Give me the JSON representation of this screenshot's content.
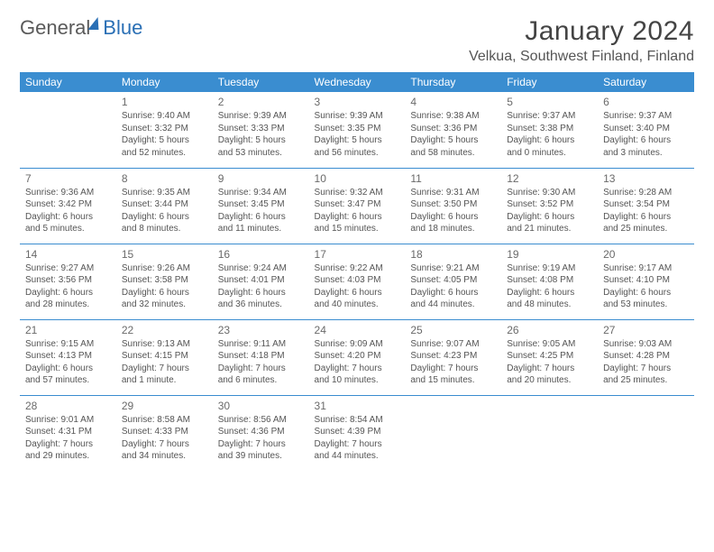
{
  "brand": {
    "part1": "General",
    "part2": "Blue"
  },
  "title": "January 2024",
  "location": "Velkua, Southwest Finland, Finland",
  "colors": {
    "header_bg": "#3a8dd0",
    "header_text": "#ffffff",
    "border": "#3a8dd0",
    "text": "#555555",
    "brand_accent": "#2a6fb5"
  },
  "week_headers": [
    "Sunday",
    "Monday",
    "Tuesday",
    "Wednesday",
    "Thursday",
    "Friday",
    "Saturday"
  ],
  "weeks": [
    [
      null,
      {
        "n": "1",
        "sr": "Sunrise: 9:40 AM",
        "ss": "Sunset: 3:32 PM",
        "d1": "Daylight: 5 hours",
        "d2": "and 52 minutes."
      },
      {
        "n": "2",
        "sr": "Sunrise: 9:39 AM",
        "ss": "Sunset: 3:33 PM",
        "d1": "Daylight: 5 hours",
        "d2": "and 53 minutes."
      },
      {
        "n": "3",
        "sr": "Sunrise: 9:39 AM",
        "ss": "Sunset: 3:35 PM",
        "d1": "Daylight: 5 hours",
        "d2": "and 56 minutes."
      },
      {
        "n": "4",
        "sr": "Sunrise: 9:38 AM",
        "ss": "Sunset: 3:36 PM",
        "d1": "Daylight: 5 hours",
        "d2": "and 58 minutes."
      },
      {
        "n": "5",
        "sr": "Sunrise: 9:37 AM",
        "ss": "Sunset: 3:38 PM",
        "d1": "Daylight: 6 hours",
        "d2": "and 0 minutes."
      },
      {
        "n": "6",
        "sr": "Sunrise: 9:37 AM",
        "ss": "Sunset: 3:40 PM",
        "d1": "Daylight: 6 hours",
        "d2": "and 3 minutes."
      }
    ],
    [
      {
        "n": "7",
        "sr": "Sunrise: 9:36 AM",
        "ss": "Sunset: 3:42 PM",
        "d1": "Daylight: 6 hours",
        "d2": "and 5 minutes."
      },
      {
        "n": "8",
        "sr": "Sunrise: 9:35 AM",
        "ss": "Sunset: 3:44 PM",
        "d1": "Daylight: 6 hours",
        "d2": "and 8 minutes."
      },
      {
        "n": "9",
        "sr": "Sunrise: 9:34 AM",
        "ss": "Sunset: 3:45 PM",
        "d1": "Daylight: 6 hours",
        "d2": "and 11 minutes."
      },
      {
        "n": "10",
        "sr": "Sunrise: 9:32 AM",
        "ss": "Sunset: 3:47 PM",
        "d1": "Daylight: 6 hours",
        "d2": "and 15 minutes."
      },
      {
        "n": "11",
        "sr": "Sunrise: 9:31 AM",
        "ss": "Sunset: 3:50 PM",
        "d1": "Daylight: 6 hours",
        "d2": "and 18 minutes."
      },
      {
        "n": "12",
        "sr": "Sunrise: 9:30 AM",
        "ss": "Sunset: 3:52 PM",
        "d1": "Daylight: 6 hours",
        "d2": "and 21 minutes."
      },
      {
        "n": "13",
        "sr": "Sunrise: 9:28 AM",
        "ss": "Sunset: 3:54 PM",
        "d1": "Daylight: 6 hours",
        "d2": "and 25 minutes."
      }
    ],
    [
      {
        "n": "14",
        "sr": "Sunrise: 9:27 AM",
        "ss": "Sunset: 3:56 PM",
        "d1": "Daylight: 6 hours",
        "d2": "and 28 minutes."
      },
      {
        "n": "15",
        "sr": "Sunrise: 9:26 AM",
        "ss": "Sunset: 3:58 PM",
        "d1": "Daylight: 6 hours",
        "d2": "and 32 minutes."
      },
      {
        "n": "16",
        "sr": "Sunrise: 9:24 AM",
        "ss": "Sunset: 4:01 PM",
        "d1": "Daylight: 6 hours",
        "d2": "and 36 minutes."
      },
      {
        "n": "17",
        "sr": "Sunrise: 9:22 AM",
        "ss": "Sunset: 4:03 PM",
        "d1": "Daylight: 6 hours",
        "d2": "and 40 minutes."
      },
      {
        "n": "18",
        "sr": "Sunrise: 9:21 AM",
        "ss": "Sunset: 4:05 PM",
        "d1": "Daylight: 6 hours",
        "d2": "and 44 minutes."
      },
      {
        "n": "19",
        "sr": "Sunrise: 9:19 AM",
        "ss": "Sunset: 4:08 PM",
        "d1": "Daylight: 6 hours",
        "d2": "and 48 minutes."
      },
      {
        "n": "20",
        "sr": "Sunrise: 9:17 AM",
        "ss": "Sunset: 4:10 PM",
        "d1": "Daylight: 6 hours",
        "d2": "and 53 minutes."
      }
    ],
    [
      {
        "n": "21",
        "sr": "Sunrise: 9:15 AM",
        "ss": "Sunset: 4:13 PM",
        "d1": "Daylight: 6 hours",
        "d2": "and 57 minutes."
      },
      {
        "n": "22",
        "sr": "Sunrise: 9:13 AM",
        "ss": "Sunset: 4:15 PM",
        "d1": "Daylight: 7 hours",
        "d2": "and 1 minute."
      },
      {
        "n": "23",
        "sr": "Sunrise: 9:11 AM",
        "ss": "Sunset: 4:18 PM",
        "d1": "Daylight: 7 hours",
        "d2": "and 6 minutes."
      },
      {
        "n": "24",
        "sr": "Sunrise: 9:09 AM",
        "ss": "Sunset: 4:20 PM",
        "d1": "Daylight: 7 hours",
        "d2": "and 10 minutes."
      },
      {
        "n": "25",
        "sr": "Sunrise: 9:07 AM",
        "ss": "Sunset: 4:23 PM",
        "d1": "Daylight: 7 hours",
        "d2": "and 15 minutes."
      },
      {
        "n": "26",
        "sr": "Sunrise: 9:05 AM",
        "ss": "Sunset: 4:25 PM",
        "d1": "Daylight: 7 hours",
        "d2": "and 20 minutes."
      },
      {
        "n": "27",
        "sr": "Sunrise: 9:03 AM",
        "ss": "Sunset: 4:28 PM",
        "d1": "Daylight: 7 hours",
        "d2": "and 25 minutes."
      }
    ],
    [
      {
        "n": "28",
        "sr": "Sunrise: 9:01 AM",
        "ss": "Sunset: 4:31 PM",
        "d1": "Daylight: 7 hours",
        "d2": "and 29 minutes."
      },
      {
        "n": "29",
        "sr": "Sunrise: 8:58 AM",
        "ss": "Sunset: 4:33 PM",
        "d1": "Daylight: 7 hours",
        "d2": "and 34 minutes."
      },
      {
        "n": "30",
        "sr": "Sunrise: 8:56 AM",
        "ss": "Sunset: 4:36 PM",
        "d1": "Daylight: 7 hours",
        "d2": "and 39 minutes."
      },
      {
        "n": "31",
        "sr": "Sunrise: 8:54 AM",
        "ss": "Sunset: 4:39 PM",
        "d1": "Daylight: 7 hours",
        "d2": "and 44 minutes."
      },
      null,
      null,
      null
    ]
  ]
}
